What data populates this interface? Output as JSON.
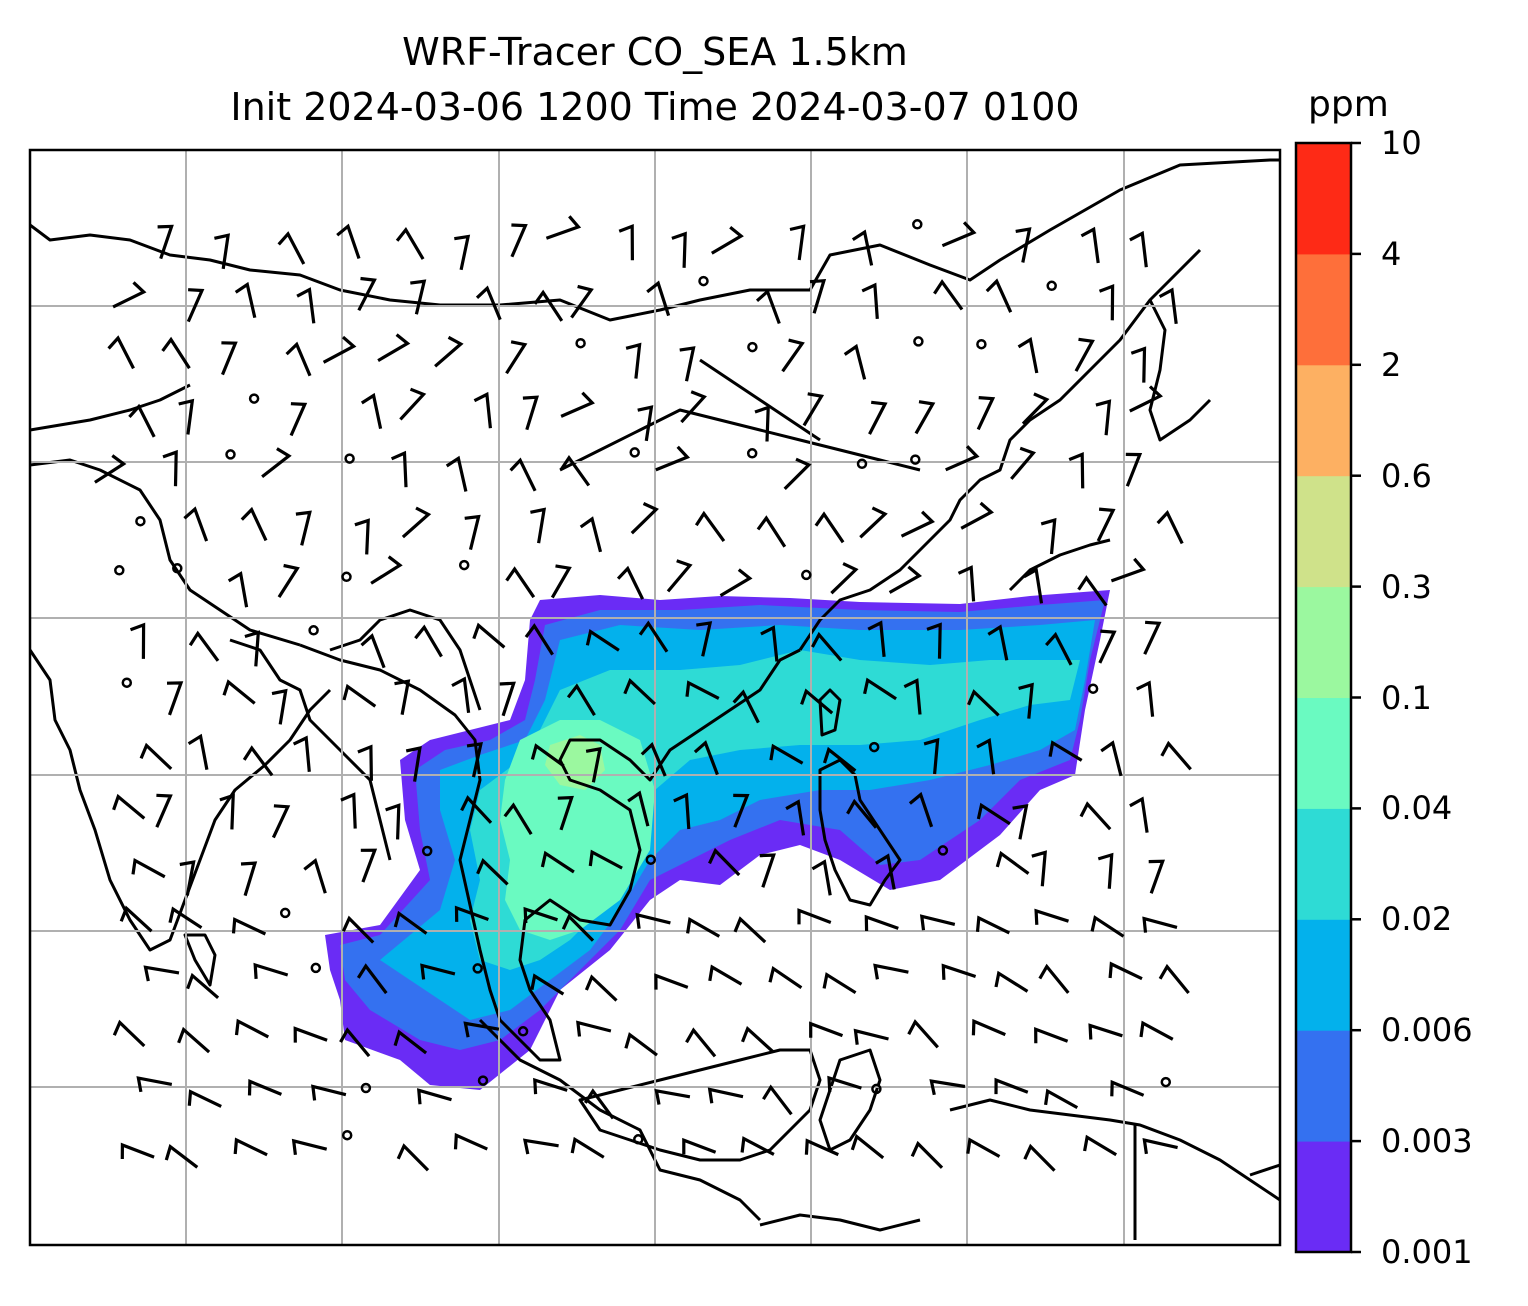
{
  "title": {
    "line1": "WRF-Tracer CO_SEA 1.5km",
    "line2": "Init 2024-03-06 1200 Time 2024-03-07 0100"
  },
  "colorbar": {
    "unit": "ppm",
    "levels": [
      "0.001",
      "0.003",
      "0.006",
      "0.02",
      "0.04",
      "0.1",
      "0.3",
      "0.6",
      "2",
      "4",
      "10"
    ],
    "colors": [
      "#6a2cf5",
      "#3471f0",
      "#03b1ec",
      "#2edbd5",
      "#6afac1",
      "#9bf89f",
      "#cfe28a",
      "#fdb062",
      "#fe6f3a",
      "#fe2a16"
    ]
  },
  "map": {
    "grid": true,
    "wind_barbs": true
  }
}
